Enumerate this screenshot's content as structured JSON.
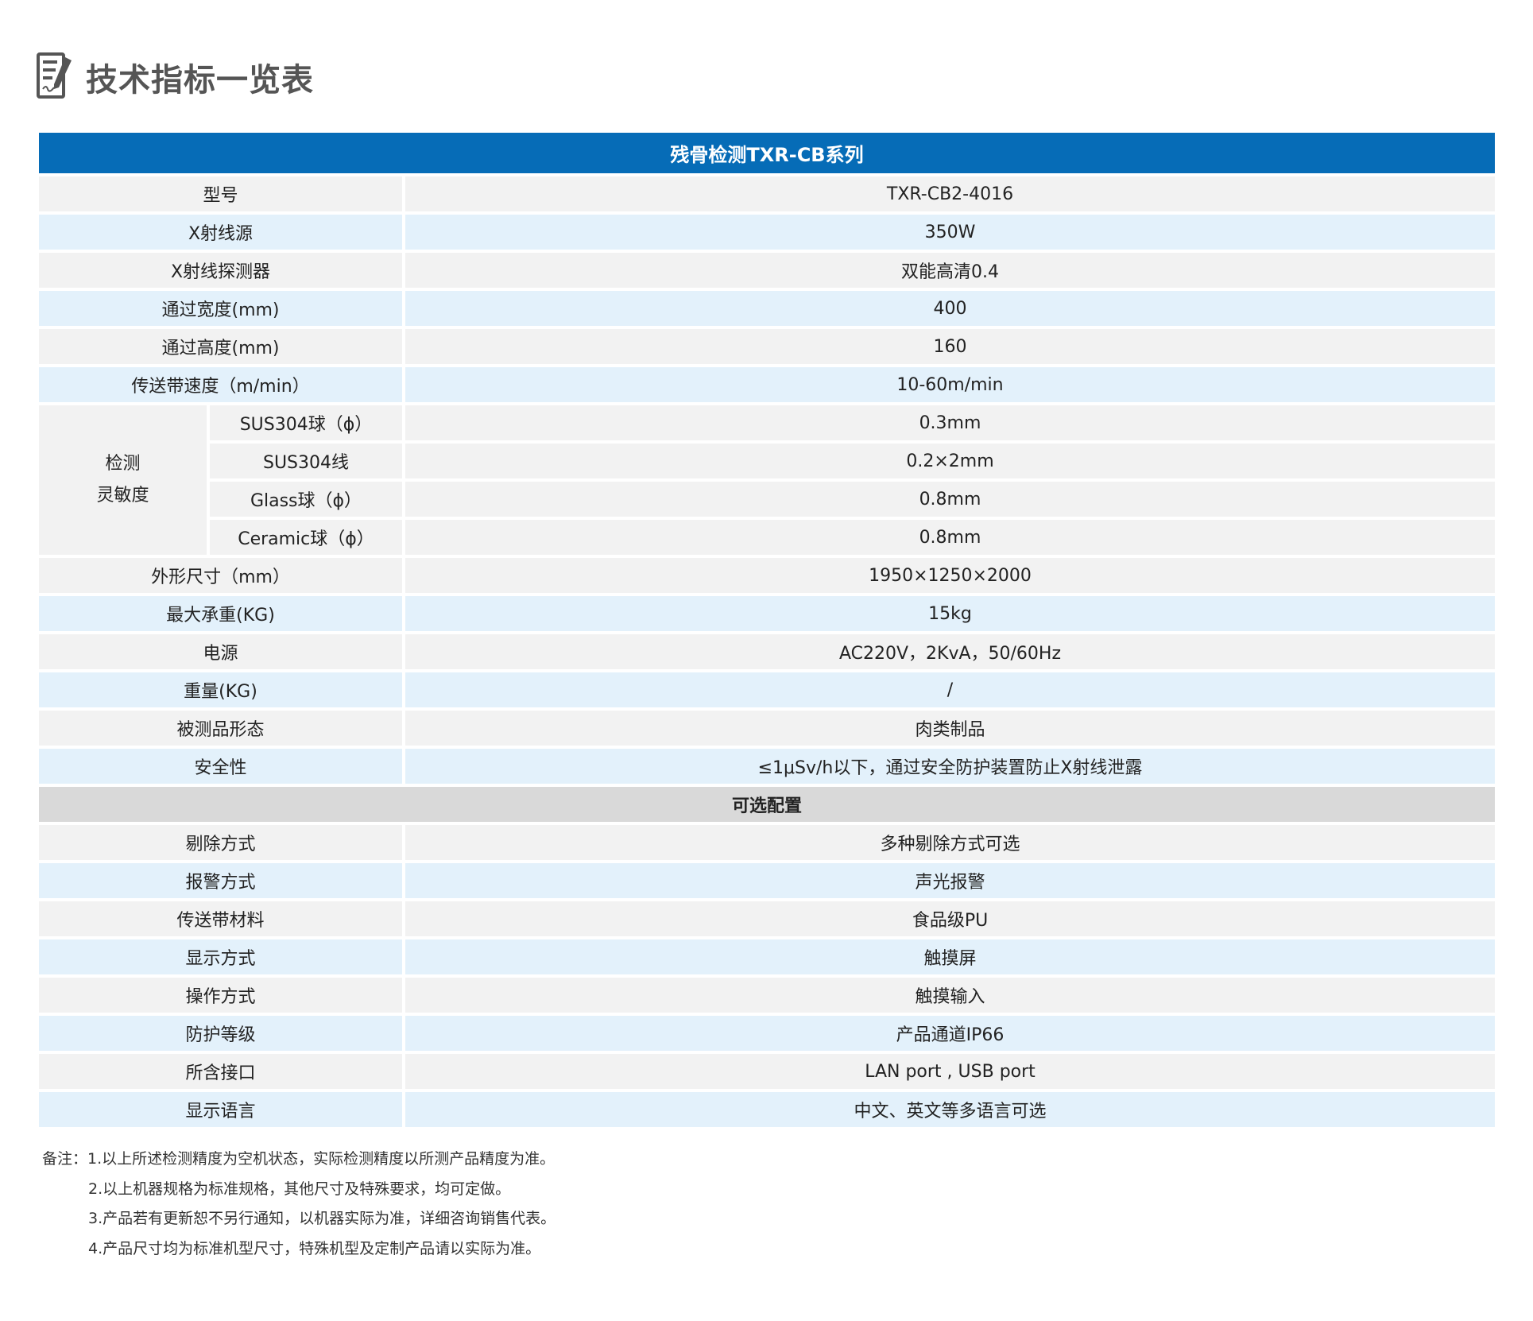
{
  "header": {
    "title": "技术指标一览表",
    "icon": "document-edit-icon"
  },
  "table": {
    "title": "残骨检测TXR-CB系列",
    "rows_top": [
      {
        "label": "型号",
        "value": "TXR-CB2-4016"
      },
      {
        "label": "X射线源",
        "value": "350W"
      },
      {
        "label": "X射线探测器",
        "value": "双能高清0.4"
      },
      {
        "label": "通过宽度(mm)",
        "value": "400"
      },
      {
        "label": "通过高度(mm)",
        "value": "160"
      },
      {
        "label": "传送带速度（m/min）",
        "value": "10-60m/min"
      }
    ],
    "sensitivity": {
      "label_line1": "检测",
      "label_line2": "灵敏度",
      "rows": [
        {
          "label": "SUS304球（ϕ）",
          "value": "0.3mm"
        },
        {
          "label": "SUS304线",
          "value": "0.2×2mm"
        },
        {
          "label": "Glass球（ϕ）",
          "value": "0.8mm"
        },
        {
          "label": "Ceramic球（ϕ）",
          "value": "0.8mm"
        }
      ]
    },
    "rows_mid": [
      {
        "label": "外形尺寸（mm）",
        "value": "1950×1250×2000"
      },
      {
        "label": "最大承重(KG)",
        "value": "15kg"
      },
      {
        "label": "电源",
        "value": "AC220V，2KvA，50/60Hz"
      },
      {
        "label": "重量(KG)",
        "value": "/"
      },
      {
        "label": "被测品形态",
        "value": "肉类制品"
      },
      {
        "label": "安全性",
        "value": "≤1μSv/h以下，通过安全防护装置防止X射线泄露"
      }
    ],
    "optional_title": "可选配置",
    "rows_optional": [
      {
        "label": "剔除方式",
        "value": "多种剔除方式可选"
      },
      {
        "label": "报警方式",
        "value": "声光报警"
      },
      {
        "label": "传送带材料",
        "value": "食品级PU"
      },
      {
        "label": "显示方式",
        "value": "触摸屏"
      },
      {
        "label": "操作方式",
        "value": "触摸输入"
      },
      {
        "label": "防护等级",
        "value": "产品通道IP66"
      },
      {
        "label": "所含接口",
        "value": "LAN port , USB port"
      },
      {
        "label": "显示语言",
        "value": "中文、英文等多语言可选"
      }
    ]
  },
  "notes": [
    "备注：1.以上所述检测精度为空机状态，实际检测精度以所测产品精度为准。",
    "2.以上机器规格为标准规格，其他尺寸及特殊要求，均可定做。",
    "3.产品若有更新恕不另行通知，以机器实际为准，详细咨询销售代表。",
    "4.产品尺寸均为标准机型尺寸，特殊机型及定制产品请以实际为准。"
  ],
  "colors": {
    "header": "#066cb7",
    "row_gray": "#f2f2f2",
    "row_blue": "#e3f1fb",
    "section": "#d9d9d9"
  }
}
